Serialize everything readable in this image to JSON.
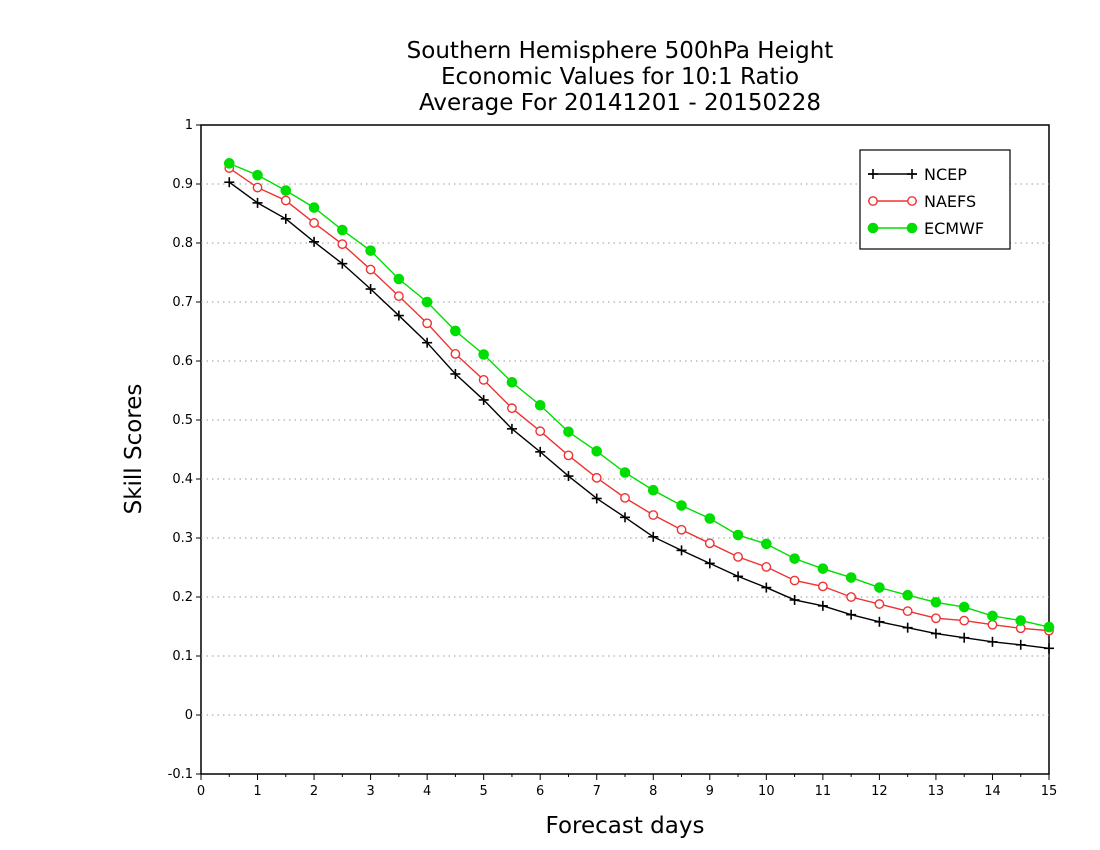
{
  "chart_data": {
    "type": "line",
    "title": [
      "Southern Hemisphere 500hPa Height",
      "Economic Values for 10:1 Ratio",
      "Average For 20141201 - 20150228"
    ],
    "xlabel": "Forecast days",
    "ylabel": "Skill Scores",
    "xlim": [
      0,
      15
    ],
    "ylim": [
      -0.1,
      1
    ],
    "xticks": [
      "0",
      "1",
      "2",
      "3",
      "4",
      "5",
      "6",
      "7",
      "8",
      "9",
      "10",
      "11",
      "12",
      "13",
      "14",
      "15"
    ],
    "yticks": [
      "-0.1",
      "0",
      "0.1",
      "0.2",
      "0.3",
      "0.4",
      "0.5",
      "0.6",
      "0.7",
      "0.8",
      "0.9",
      "1"
    ],
    "grid": "horizontal dotted",
    "legend_position": "top-right",
    "x": [
      0.5,
      1,
      1.5,
      2,
      2.5,
      3,
      3.5,
      4,
      4.5,
      5,
      5.5,
      6,
      6.5,
      7,
      7.5,
      8,
      8.5,
      9,
      9.5,
      10,
      10.5,
      11,
      11.5,
      12,
      12.5,
      13,
      13.5,
      14,
      14.5,
      15
    ],
    "series": [
      {
        "name": "NCEP",
        "color": "#000000",
        "marker": "plus",
        "values": [
          0.903,
          0.868,
          0.841,
          0.802,
          0.765,
          0.722,
          0.677,
          0.631,
          0.578,
          0.534,
          0.485,
          0.446,
          0.405,
          0.367,
          0.335,
          0.302,
          0.279,
          0.257,
          0.235,
          0.216,
          0.195,
          0.185,
          0.17,
          0.158,
          0.148,
          0.138,
          0.131,
          0.124,
          0.119,
          0.113
        ]
      },
      {
        "name": "NAEFS",
        "color": "#ee3333",
        "marker": "open-circle",
        "values": [
          0.927,
          0.894,
          0.872,
          0.834,
          0.798,
          0.755,
          0.71,
          0.664,
          0.612,
          0.568,
          0.52,
          0.481,
          0.44,
          0.402,
          0.368,
          0.339,
          0.314,
          0.291,
          0.268,
          0.251,
          0.228,
          0.218,
          0.2,
          0.188,
          0.176,
          0.164,
          0.16,
          0.153,
          0.147,
          0.143
        ]
      },
      {
        "name": "ECMWF",
        "color": "#00dd00",
        "marker": "filled-circle",
        "values": [
          0.935,
          0.915,
          0.889,
          0.86,
          0.822,
          0.787,
          0.739,
          0.7,
          0.651,
          0.611,
          0.564,
          0.525,
          0.48,
          0.447,
          0.411,
          0.381,
          0.355,
          0.333,
          0.305,
          0.29,
          0.265,
          0.248,
          0.233,
          0.216,
          0.203,
          0.191,
          0.183,
          0.168,
          0.16,
          0.149
        ]
      }
    ]
  }
}
